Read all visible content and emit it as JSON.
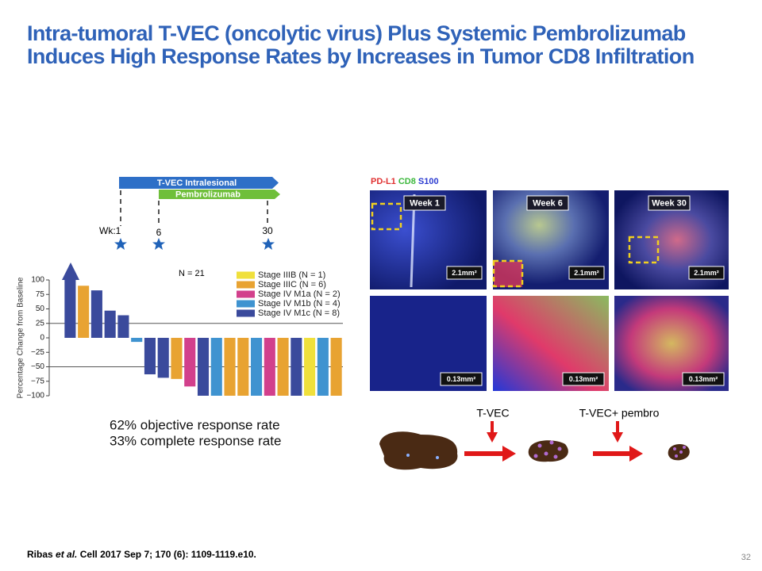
{
  "slide": {
    "title_line1": "Intra-tumoral T-VEC (oncolytic virus) Plus Systemic Pembrolizumab",
    "title_line2": "Induces High Response Rates by Increases in Tumor CD8 Infiltration",
    "page_number": "32"
  },
  "timeline": {
    "tvec": "T-VEC Intralesional",
    "pembro": "Pembrolizumab",
    "wk_label": "Wk:",
    "weeks": [
      1,
      6,
      30
    ]
  },
  "chart_data": {
    "type": "bar",
    "annotation": "N = 21",
    "y_label": "Percentage Change from Baseline",
    "categories": [
      null,
      null,
      null,
      null,
      null,
      null,
      null,
      null,
      null,
      null,
      null,
      null,
      null,
      null,
      null,
      null,
      null,
      null,
      null,
      null,
      null
    ],
    "series": [
      {
        "name": "Stage IIIB (N = 1)",
        "color": "#f0e03c",
        "values": [
          null,
          null,
          null,
          null,
          null,
          null,
          null,
          null,
          null,
          null,
          null,
          null,
          null,
          null,
          null,
          null,
          null,
          null,
          -100,
          null,
          null
        ]
      },
      {
        "name": "Stage IIIC (N = 6)",
        "color": "#e8a332",
        "values": [
          null,
          90,
          null,
          null,
          null,
          null,
          null,
          null,
          -71,
          null,
          null,
          null,
          -100,
          -100,
          null,
          null,
          -100,
          null,
          null,
          null,
          -100
        ]
      },
      {
        "name": "Stage IV M1a (N = 2)",
        "color": "#d2408c",
        "values": [
          null,
          null,
          null,
          null,
          null,
          null,
          null,
          null,
          null,
          -84,
          null,
          null,
          null,
          null,
          null,
          -100,
          null,
          null,
          null,
          null,
          null
        ]
      },
      {
        "name": "Stage IV M1b (N = 4)",
        "color": "#3f93d0",
        "values": [
          null,
          null,
          null,
          null,
          null,
          -7,
          null,
          null,
          null,
          null,
          null,
          -100,
          null,
          null,
          -100,
          null,
          null,
          null,
          null,
          -100,
          null
        ]
      },
      {
        "name": "Stage IV M1c (N = 8)",
        "color": "#3a4a9c",
        "values": [
          100,
          null,
          82,
          47,
          39,
          null,
          -63,
          -69,
          null,
          null,
          -100,
          null,
          null,
          null,
          null,
          null,
          null,
          -100,
          null,
          null,
          null
        ]
      }
    ],
    "ylim": [
      -100,
      100
    ],
    "yticks": [
      100,
      75,
      50,
      25,
      0,
      {
        "value": -25,
        "label": "−25"
      },
      {
        "value": -50,
        "label": "−50"
      },
      {
        "value": -75,
        "label": "−75"
      },
      {
        "value": -100,
        "label": "−100"
      }
    ],
    "hlines": [
      25,
      -50
    ]
  },
  "results": {
    "orr": "62% objective response rate",
    "crr": "33% complete response rate"
  },
  "images": {
    "stain_pdl1": "PD-L1",
    "stain_cd8": "CD8",
    "stain_s100": "S100",
    "weeks": [
      "Week 1",
      "Week 6",
      "Week 30"
    ],
    "top_area": [
      "2.1mm²",
      "2.1mm²",
      "2.1mm²"
    ],
    "bottom_area": [
      "0.13mm²",
      "0.13mm²",
      "0.13mm²"
    ]
  },
  "diagram": {
    "step1": "T-VEC",
    "step2": "T-VEC+ pembro"
  },
  "citation": {
    "author": "Ribas",
    "etal": "et al.",
    "rest": "Cell 2017 Sep 7; 170 (6): 1109-1119.e10."
  }
}
